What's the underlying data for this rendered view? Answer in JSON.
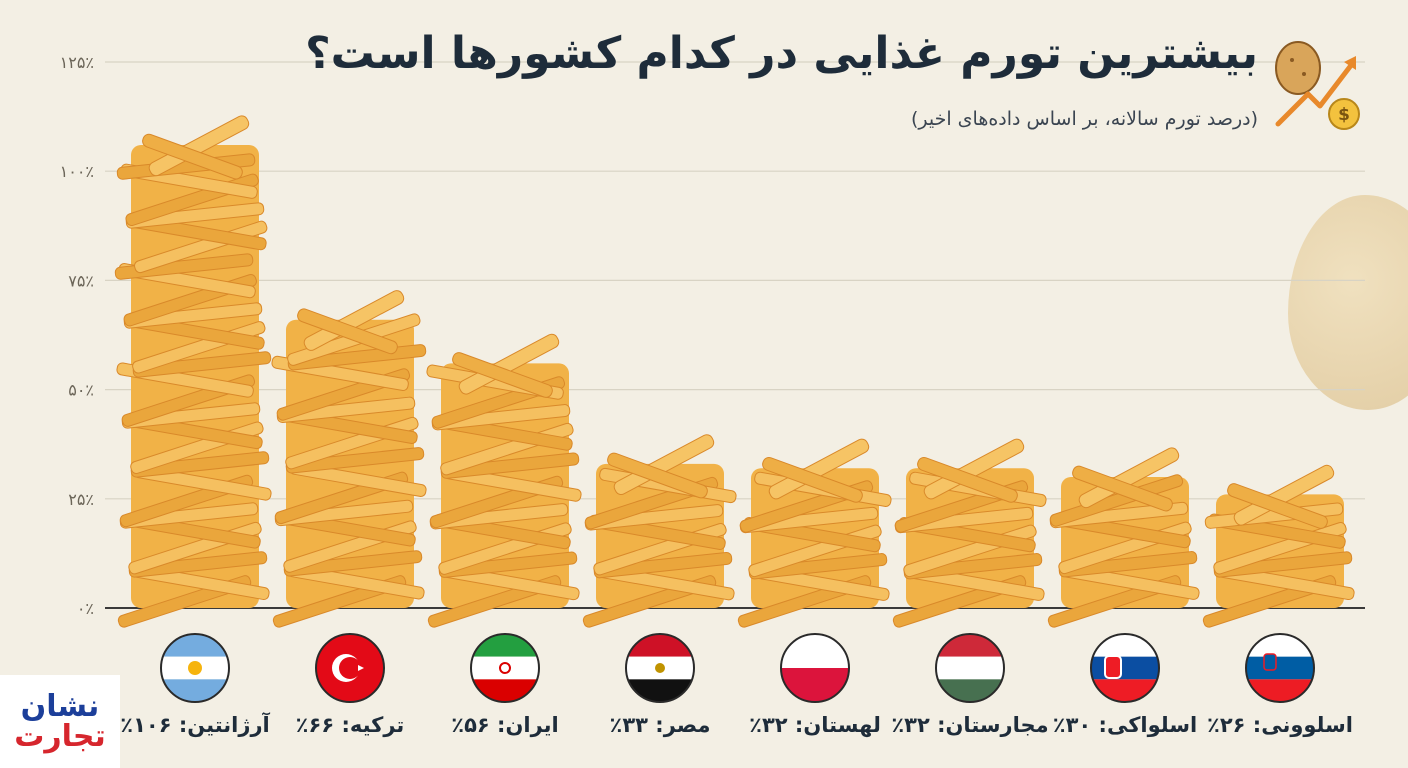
{
  "header": {
    "title": "بیشترین تورم غذایی در کدام کشورها است؟",
    "subtitle": "(درصد تورم سالانه، بر اساس داده‌های اخیر)"
  },
  "logo": {
    "line1": "نشان",
    "line2": "تجارت"
  },
  "colors": {
    "background": "#f3efe4",
    "fries": "#f1b247",
    "fries_dark": "#d9892a",
    "title": "#1e2c3a",
    "grid": "#d8d3c4"
  },
  "icons": [
    "potato-icon",
    "trend-up-arrow-icon",
    "dollar-coin-icon"
  ],
  "chart_data": {
    "type": "bar",
    "categories": [
      "آرژانتین",
      "ترکیه",
      "ایران",
      "مصر",
      "لهستان",
      "مجارستان",
      "اسلواکی",
      "اسلوونی"
    ],
    "values": [
      106,
      66,
      56,
      33,
      32,
      32,
      30,
      26
    ],
    "value_labels": [
      "آرژانتین: ۱۰۶٪",
      "ترکیه: ۶۶٪",
      "ایران: ۵۶٪",
      "مصر: ۳۳٪",
      "لهستان: ۳۲٪",
      "مجارستان: ۳۲٪",
      "اسلواکی: ۳۰٪",
      "اسلوونی: ۲۶٪"
    ],
    "flags": [
      "argentina",
      "turkey",
      "iran",
      "egypt",
      "poland",
      "hungary",
      "slovakia",
      "slovenia"
    ],
    "yticks": [
      0,
      25,
      50,
      75,
      100,
      125
    ],
    "ytick_labels": [
      "۰٪",
      "۲۵٪",
      "۵۰٪",
      "۷۵٪",
      "۱۰۰٪",
      "۱۲۵٪"
    ],
    "ylim": [
      0,
      125
    ],
    "grid": true
  }
}
